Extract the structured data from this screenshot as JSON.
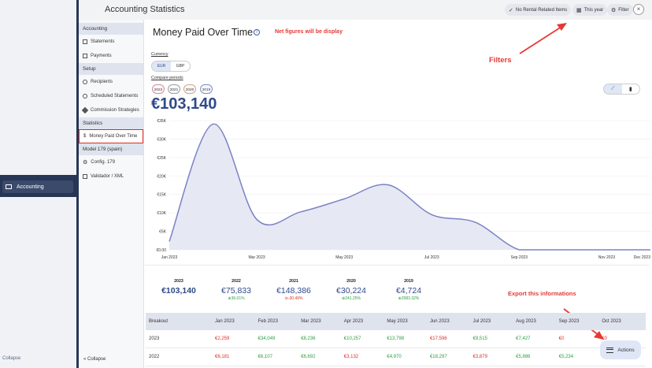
{
  "rail": {
    "accounting_label": "Accounting",
    "bottom_label": "Collapse"
  },
  "topbar": {
    "title": "Accounting Statistics",
    "no_rental_label": "No Rental Related Items",
    "this_year_label": "This year",
    "filter_label": "Filter",
    "close_label": "×"
  },
  "menu": {
    "sec_accounting": "Accounting",
    "statements": "Statements",
    "payments": "Payments",
    "sec_setup": "Setup",
    "recipients": "Recipients",
    "scheduled": "Scheduled Statements",
    "commission": "Commission Strategies",
    "sec_statistics": "Statistics",
    "money_paid": "Money Paid Over Time",
    "sec_model": "Model 179 (spain)",
    "config": "Config. 179",
    "validador": "Validador / XML",
    "collapse": "Collapse"
  },
  "page": {
    "title": "Money Paid Over Time",
    "total": "€103,140"
  },
  "annotations": {
    "net": "Net figures will be display",
    "filters": "Filters",
    "export": "Export this informations"
  },
  "controls": {
    "currency_label": "Currency",
    "currencies": [
      "EUR",
      "GBP"
    ],
    "compare_label": "Compare periods",
    "years": [
      "2022",
      "2021",
      "2020",
      "2019"
    ],
    "year_colors": [
      "#d98aa0",
      "#9aa0a8",
      "#d9a27a",
      "#7b8bd4"
    ]
  },
  "chart_data": {
    "type": "area",
    "x": [
      "Jan 2023",
      "Feb 2023",
      "Mar 2023",
      "Apr 2023",
      "May 2023",
      "Jun 2023",
      "Jul 2023",
      "Aug 2023",
      "Sep 2023",
      "Oct 2023",
      "Nov 2023",
      "Dec 2023"
    ],
    "x_tick_labels": [
      "Jan 2023",
      "Mar 2023",
      "May 2023",
      "Jul 2023",
      "Sep 2023",
      "Nov 2023",
      "Dec 2023"
    ],
    "values": [
      2259,
      34049,
      8236,
      10257,
      13798,
      17596,
      9515,
      7427,
      0,
      0,
      0,
      0
    ],
    "y_tick_labels": [
      "€0.00",
      "€5K",
      "€10K",
      "€15K",
      "€20K",
      "€25K",
      "€30K",
      "€35K"
    ],
    "ylim": [
      0,
      35000
    ],
    "color": "#7b82c4",
    "fill": "#e6e8f4"
  },
  "summary": [
    {
      "year": "2023",
      "amount": "€103,140",
      "pct": ""
    },
    {
      "year": "2022",
      "amount": "€75,833",
      "pct": "36.01%"
    },
    {
      "year": "2021",
      "amount": "€148,386",
      "pct": "-30.49%"
    },
    {
      "year": "2020",
      "amount": "€30,224",
      "pct": "241.25%"
    },
    {
      "year": "2019",
      "amount": "€4,724",
      "pct": "2083.32%"
    }
  ],
  "table": {
    "headers": [
      "Breakout",
      "Jan 2023",
      "Feb 2023",
      "Mar 2023",
      "Apr 2023",
      "May 2023",
      "Jun 2023",
      "Jul 2023",
      "Aug 2023",
      "Sep 2023",
      "Oct 2023"
    ],
    "rows": [
      {
        "label": "2023",
        "cells": [
          "€2,259",
          "€34,049",
          "€8,236",
          "€10,257",
          "€13,798",
          "€17,596",
          "€9,515",
          "€7,427",
          "€0",
          "€0"
        ],
        "colors": [
          "neg",
          "pos",
          "pos",
          "pos",
          "pos",
          "neg",
          "pos",
          "pos",
          "neg",
          "neg"
        ]
      },
      {
        "label": "2022",
        "cells": [
          "€6,181",
          "€6,107",
          "€6,692",
          "€3,132",
          "€4,970",
          "€18,297",
          "€3,879",
          "€5,886",
          "€5,234",
          ""
        ],
        "colors": [
          "neg",
          "pos",
          "pos",
          "neg",
          "pos",
          "pos",
          "neg",
          "pos",
          "pos",
          "pos"
        ]
      }
    ]
  },
  "actions_label": "Actions"
}
